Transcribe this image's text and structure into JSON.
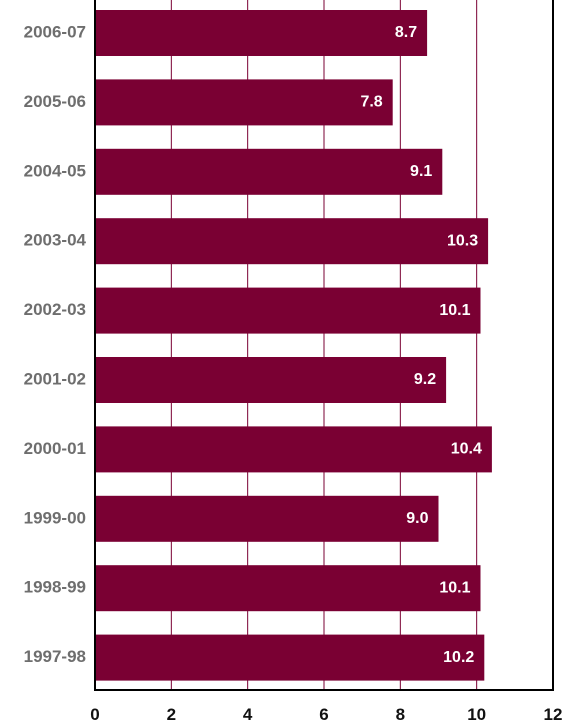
{
  "chart_data": {
    "type": "bar",
    "orientation": "horizontal",
    "categories": [
      "2006-07",
      "2005-06",
      "2004-05",
      "2003-04",
      "2002-03",
      "2001-02",
      "2000-01",
      "1999-00",
      "1998-99",
      "1997-98"
    ],
    "values": [
      8.7,
      7.8,
      9.1,
      10.3,
      10.1,
      9.2,
      10.4,
      9.0,
      10.1,
      10.2
    ],
    "value_labels": [
      "8.7",
      "7.8",
      "9.1",
      "10.3",
      "10.1",
      "9.2",
      "10.4",
      "9.0",
      "10.1",
      "10.2"
    ],
    "xlim": [
      0,
      12
    ],
    "xticks": [
      0,
      2,
      4,
      6,
      8,
      10,
      12
    ],
    "xtick_labels": [
      "0",
      "2",
      "4",
      "6",
      "8",
      "10",
      "12"
    ],
    "grid": "vertical",
    "legend": "none",
    "colors": {
      "bar": "#7a0033",
      "grid": "#7a0033",
      "axis": "#000000",
      "category_label": "#6e6e6e",
      "tick_label": "#111111",
      "data_label": "#ffffff"
    }
  }
}
